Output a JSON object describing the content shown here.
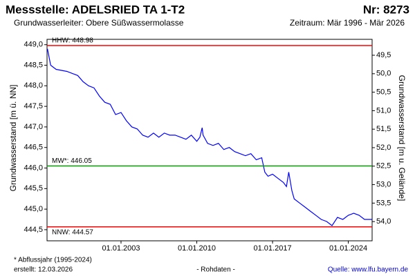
{
  "chart_data": {
    "type": "line",
    "title": "Messstelle: ADELSRIED TA 1-T2",
    "number": "Nr: 8273",
    "subtitle": "Grundwasserleiter:  Obere Süßwassermolasse",
    "period": "Zeitraum: Mär 1996 - Mär 2026",
    "y_label": "Grundwasserstand [m ü. NN]",
    "y2_label": "Grundwasserstand [m u. Gelände]",
    "footnote": "* Abflussjahr (1995-2024)",
    "created": "erstellt:  12.03.2026",
    "data_note": "- Rohdaten -",
    "source": "Quelle: www.lfu.bayern.de",
    "xlim": [
      "1996-03-01",
      "2026-03-15"
    ],
    "xticks": [
      {
        "value": "2003-01-01",
        "label": "01.01.2003"
      },
      {
        "value": "2010-01-01",
        "label": "01.01.2010"
      },
      {
        "value": "2017-01-01",
        "label": "01.01.2017"
      },
      {
        "value": "2024-01-01",
        "label": "01.01.2024"
      }
    ],
    "ylim": [
      444.23,
      449.13
    ],
    "yticks": [
      {
        "value": 444.5,
        "label": "444,5"
      },
      {
        "value": 445,
        "label": "445,0"
      },
      {
        "value": 445.5,
        "label": "445,5"
      },
      {
        "value": 446,
        "label": "446,0"
      },
      {
        "value": 446.5,
        "label": "446,5"
      },
      {
        "value": 447,
        "label": "447,0"
      },
      {
        "value": 447.5,
        "label": "447,5"
      },
      {
        "value": 448,
        "label": "448,0"
      },
      {
        "value": 448.5,
        "label": "448,5"
      },
      {
        "value": 449,
        "label": "449,0"
      }
    ],
    "y2lim": [
      54.52,
      49.07
    ],
    "y2ticks": [
      {
        "value": 49.5,
        "label": "49,5"
      },
      {
        "value": 50,
        "label": "50,0"
      },
      {
        "value": 50.5,
        "label": "50,5"
      },
      {
        "value": 51,
        "label": "51,0"
      },
      {
        "value": 51.5,
        "label": "51,5"
      },
      {
        "value": 52,
        "label": "52,0"
      },
      {
        "value": 52.5,
        "label": "52,5"
      },
      {
        "value": 53,
        "label": "53,0"
      },
      {
        "value": 53.5,
        "label": "53,5"
      },
      {
        "value": 54,
        "label": "54,0"
      }
    ],
    "reference_lines": [
      {
        "label": "HHW: 448.98",
        "value": 448.98,
        "color": "#ff0000"
      },
      {
        "label": "MW*: 446.05",
        "value": 446.05,
        "color": "#009900"
      },
      {
        "label": "NNW: 444.57",
        "value": 444.57,
        "color": "#ff0000"
      }
    ],
    "series": [
      {
        "color": "#0000ff",
        "x": [
          "1996-03-15",
          "1996-07-01",
          "1997-01-01",
          "1998-01-01",
          "1998-07-01",
          "1999-01-01",
          "1999-07-01",
          "2000-01-01",
          "2000-07-01",
          "2001-01-01",
          "2001-07-01",
          "2002-01-01",
          "2002-07-01",
          "2003-01-01",
          "2003-07-01",
          "2004-01-01",
          "2004-07-01",
          "2005-01-01",
          "2005-07-01",
          "2006-01-01",
          "2006-07-01",
          "2007-01-01",
          "2007-07-01",
          "2008-01-01",
          "2008-07-01",
          "2009-01-01",
          "2009-07-01",
          "2010-01-01",
          "2010-04-15",
          "2010-07-01",
          "2010-08-01",
          "2011-01-01",
          "2011-07-01",
          "2012-01-01",
          "2012-07-01",
          "2013-01-01",
          "2013-07-01",
          "2014-01-01",
          "2014-07-01",
          "2015-01-01",
          "2015-07-01",
          "2016-01-01",
          "2016-04-15",
          "2016-08-01",
          "2017-01-01",
          "2017-07-01",
          "2018-01-01",
          "2018-04-15",
          "2018-07-01",
          "2018-10-15",
          "2019-01-01",
          "2019-07-01",
          "2020-01-01",
          "2020-07-01",
          "2021-01-01",
          "2021-07-01",
          "2022-01-01",
          "2022-07-01",
          "2023-01-01",
          "2023-07-01",
          "2024-01-01",
          "2024-07-01",
          "2025-01-01",
          "2025-07-01",
          "2026-03-15"
        ],
        "values": [
          448.9,
          448.5,
          448.4,
          448.35,
          448.3,
          448.25,
          448.1,
          448.0,
          447.95,
          447.75,
          447.6,
          447.55,
          447.3,
          447.35,
          447.15,
          447.0,
          446.95,
          446.8,
          446.75,
          446.85,
          446.75,
          446.85,
          446.8,
          446.8,
          446.75,
          446.7,
          446.8,
          446.65,
          446.75,
          446.98,
          446.8,
          446.6,
          446.55,
          446.6,
          446.45,
          446.5,
          446.4,
          446.35,
          446.3,
          446.35,
          446.2,
          446.25,
          445.9,
          445.8,
          445.85,
          445.75,
          445.65,
          445.55,
          445.9,
          445.45,
          445.25,
          445.15,
          445.05,
          444.95,
          444.85,
          444.75,
          444.7,
          444.6,
          444.8,
          444.75,
          444.85,
          444.9,
          444.85,
          444.75,
          444.75
        ]
      }
    ]
  }
}
